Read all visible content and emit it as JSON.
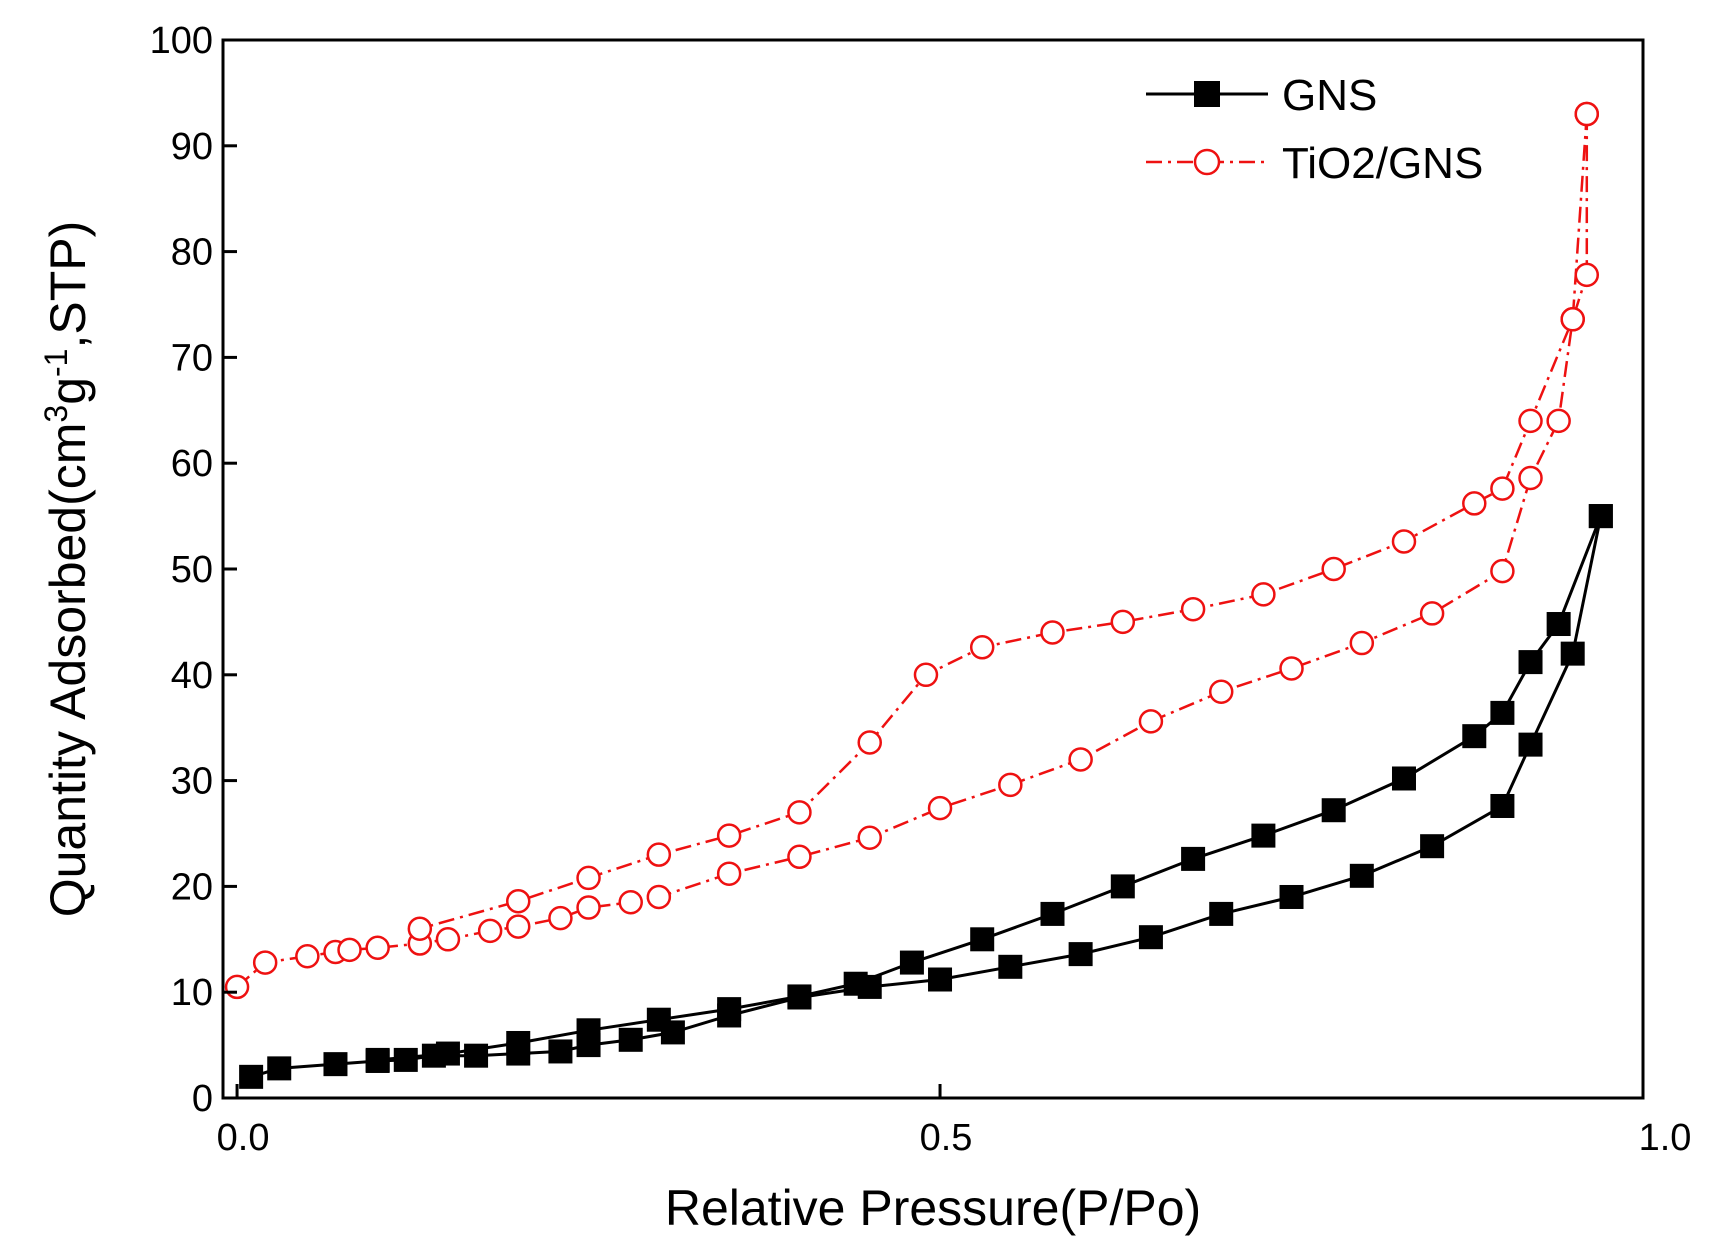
{
  "chart_data": {
    "type": "line",
    "title": "",
    "xlabel": "Relative Pressure(P/Po)",
    "ylabel": {
      "main": "Quantity Adsorbed(cm",
      "sup1": "3",
      "mid": "g",
      "sup2": "-1",
      "end": ",STP)"
    },
    "xlim": [
      -0.01,
      1.0
    ],
    "ylim": [
      0,
      100
    ],
    "xticks": [
      0.0,
      0.5,
      1.0
    ],
    "xtick_labels": [
      "0.0",
      "0.5",
      "1.0"
    ],
    "yticks": [
      0,
      10,
      20,
      30,
      40,
      50,
      60,
      70,
      80,
      90,
      100
    ],
    "ytick_labels": [
      "0",
      "10",
      "20",
      "30",
      "40",
      "50",
      "60",
      "70",
      "80",
      "90",
      "100"
    ],
    "grid": false,
    "legend_position": "top-right",
    "series": [
      {
        "name": "GNS",
        "color": "#000000",
        "marker": "filled-square",
        "line_style": "solid",
        "branches": [
          {
            "label": "adsorption",
            "x": [
              0.01,
              0.03,
              0.07,
              0.1,
              0.12,
              0.14,
              0.17,
              0.2,
              0.23,
              0.25,
              0.28,
              0.31,
              0.35,
              0.4,
              0.45,
              0.5,
              0.55,
              0.6,
              0.65,
              0.7,
              0.75,
              0.8,
              0.85,
              0.9,
              0.92,
              0.95,
              0.97
            ],
            "y": [
              2.0,
              2.8,
              3.2,
              3.5,
              3.6,
              4.0,
              4.0,
              4.2,
              4.4,
              5.0,
              5.5,
              6.2,
              7.8,
              9.5,
              10.5,
              11.2,
              12.4,
              13.6,
              15.2,
              17.4,
              19.0,
              21.0,
              23.8,
              27.6,
              33.4,
              42.0,
              55.0
            ]
          },
          {
            "label": "desorption",
            "x": [
              0.97,
              0.94,
              0.92,
              0.9,
              0.88,
              0.83,
              0.78,
              0.73,
              0.68,
              0.63,
              0.58,
              0.53,
              0.48,
              0.44,
              0.4,
              0.35,
              0.3,
              0.25,
              0.2,
              0.15,
              0.1
            ],
            "y": [
              55.0,
              44.8,
              41.2,
              36.4,
              34.2,
              30.2,
              27.2,
              24.8,
              22.6,
              20.0,
              17.4,
              15.0,
              12.8,
              10.8,
              9.6,
              8.4,
              7.4,
              6.4,
              5.2,
              4.2,
              3.6
            ]
          }
        ]
      },
      {
        "name": "TiO2/GNS",
        "color": "#ee1111",
        "marker": "open-circle",
        "line_style": "dash-dot",
        "branches": [
          {
            "label": "adsorption",
            "x": [
              0.0,
              0.02,
              0.05,
              0.07,
              0.08,
              0.1,
              0.13,
              0.15,
              0.18,
              0.2,
              0.23,
              0.25,
              0.28,
              0.3,
              0.35,
              0.4,
              0.45,
              0.5,
              0.55,
              0.6,
              0.65,
              0.7,
              0.75,
              0.8,
              0.85,
              0.9,
              0.92,
              0.94,
              0.95,
              0.96
            ],
            "y": [
              10.5,
              12.8,
              13.4,
              13.8,
              14.0,
              14.2,
              14.6,
              15.0,
              15.8,
              16.2,
              17.0,
              18.0,
              18.5,
              19.0,
              21.2,
              22.8,
              24.6,
              27.4,
              29.6,
              32.0,
              35.6,
              38.4,
              40.6,
              43.0,
              45.8,
              49.8,
              58.6,
              64.0,
              73.6,
              93.0
            ]
          },
          {
            "label": "desorption",
            "x": [
              0.96,
              0.96,
              0.95,
              0.92,
              0.9,
              0.88,
              0.83,
              0.78,
              0.73,
              0.68,
              0.63,
              0.58,
              0.53,
              0.49,
              0.45,
              0.4,
              0.35,
              0.3,
              0.25,
              0.2,
              0.13
            ],
            "y": [
              93.0,
              77.8,
              73.6,
              64.0,
              57.6,
              56.2,
              52.6,
              50.0,
              47.6,
              46.2,
              45.0,
              44.0,
              42.6,
              40.0,
              33.6,
              27.0,
              24.8,
              23.0,
              20.8,
              18.6,
              16.0
            ]
          }
        ]
      }
    ]
  }
}
